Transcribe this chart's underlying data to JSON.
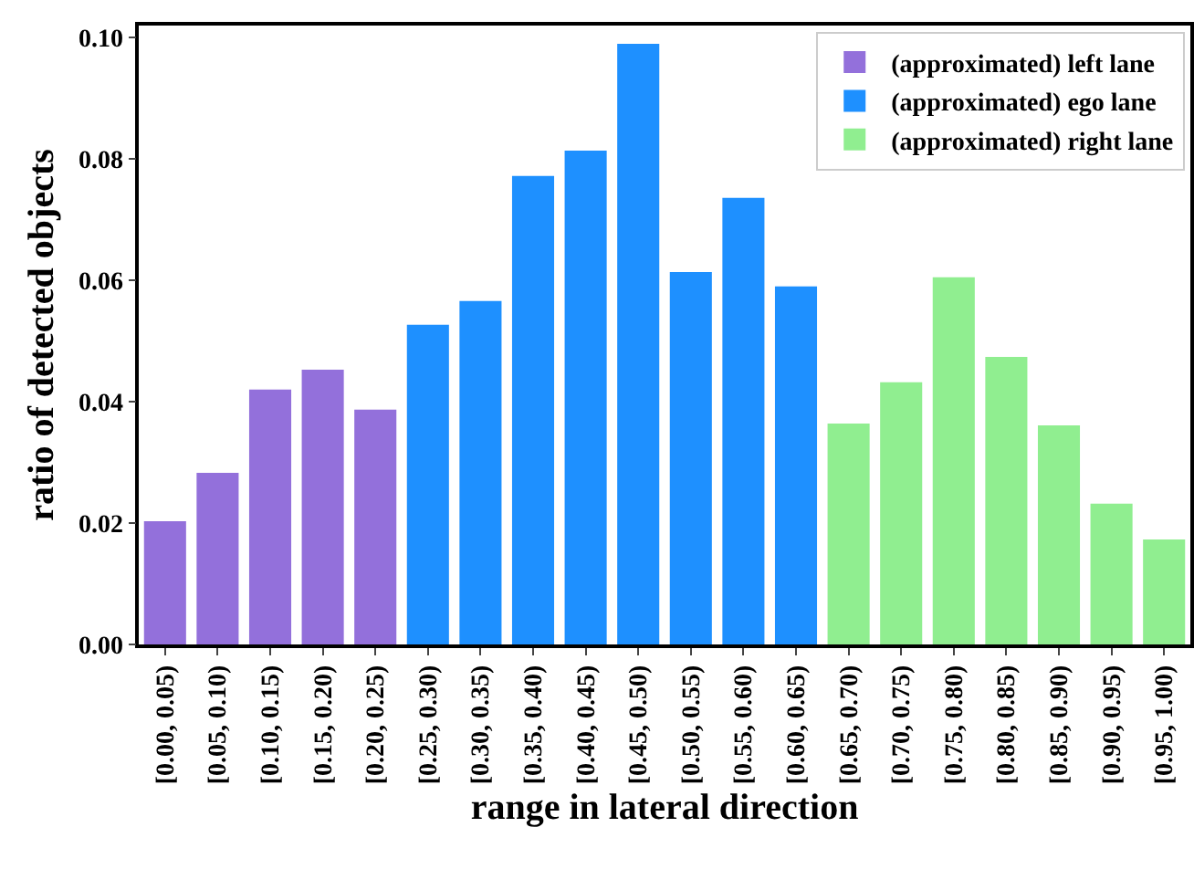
{
  "chart_data": {
    "type": "bar",
    "xlabel": "range in lateral direction",
    "ylabel": "ratio of detected objects",
    "categories": [
      "[0.00, 0.05)",
      "[0.05, 0.10)",
      "[0.10, 0.15)",
      "[0.15, 0.20)",
      "[0.20, 0.25)",
      "[0.25, 0.30)",
      "[0.30, 0.35)",
      "[0.35, 0.40)",
      "[0.40, 0.45)",
      "[0.45, 0.50)",
      "[0.50, 0.55)",
      "[0.55, 0.60)",
      "[0.60, 0.65)",
      "[0.65, 0.70)",
      "[0.70, 0.75)",
      "[0.75, 0.80)",
      "[0.80, 0.85)",
      "[0.85, 0.90)",
      "[0.90, 0.95)",
      "[0.95, 1.00)"
    ],
    "series": [
      {
        "name": "(approximated) left lane",
        "color": "#9370db",
        "values": [
          0.0203,
          0.0283,
          0.042,
          0.0453,
          0.0387,
          null,
          null,
          null,
          null,
          null,
          null,
          null,
          null,
          null,
          null,
          null,
          null,
          null,
          null,
          null
        ]
      },
      {
        "name": "(approximated) ego lane",
        "color": "#1e90ff",
        "values": [
          null,
          null,
          null,
          null,
          null,
          0.0527,
          0.0566,
          0.0772,
          0.0814,
          0.099,
          0.0614,
          0.0736,
          0.059,
          null,
          null,
          null,
          null,
          null,
          null,
          null
        ]
      },
      {
        "name": "(approximated) right lane",
        "color": "#90ee90",
        "values": [
          null,
          null,
          null,
          null,
          null,
          null,
          null,
          null,
          null,
          null,
          null,
          null,
          null,
          0.0364,
          0.0432,
          0.0605,
          0.0474,
          0.0361,
          0.0232,
          0.0173
        ]
      }
    ],
    "ylim": [
      0,
      0.102
    ],
    "yticks": [
      {
        "value": 0,
        "label": "0.00"
      },
      {
        "value": 0.02,
        "label": "0.02"
      },
      {
        "value": 0.04,
        "label": "0.04"
      },
      {
        "value": 0.06,
        "label": "0.06"
      },
      {
        "value": 0.08,
        "label": "0.08"
      },
      {
        "value": 0.1,
        "label": "0.10"
      }
    ],
    "grid": false,
    "legend": "top right"
  }
}
